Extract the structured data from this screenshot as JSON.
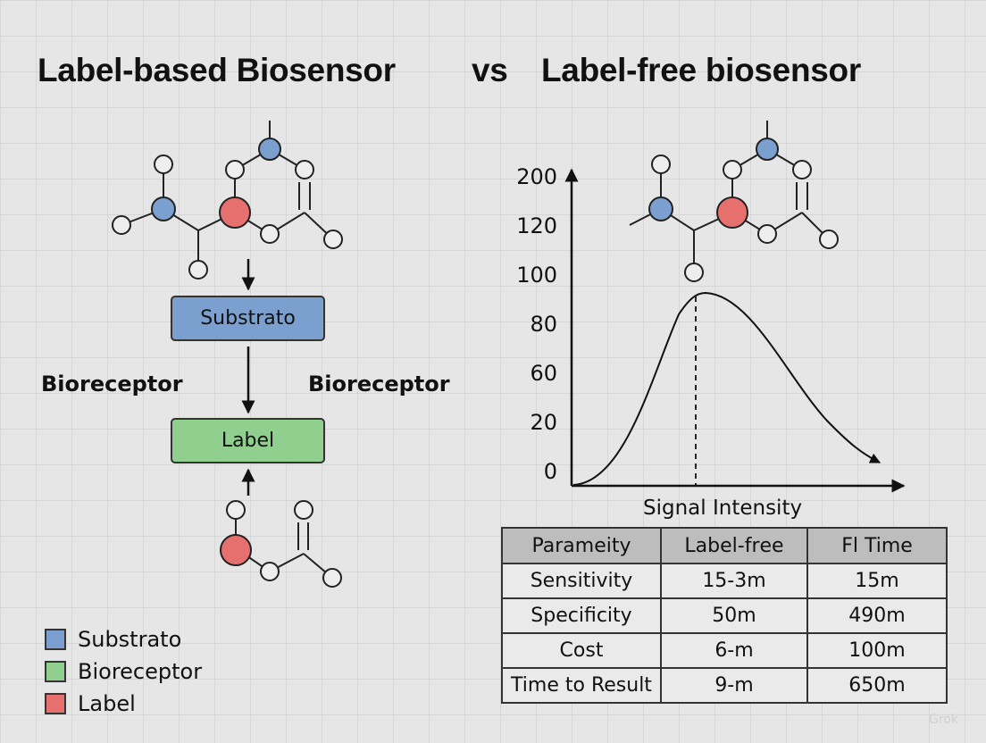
{
  "titles": {
    "left": "Label-based Biosensor",
    "vs": "vs",
    "right": "Label-free biosensor"
  },
  "boxes": {
    "substrato": "Substrato",
    "label": "Label"
  },
  "side_labels": {
    "left": "Bioreceptor",
    "right": "Bioreceptor"
  },
  "colors": {
    "substrato": "#7ba0cf",
    "bioreceptor": "#91cf8e",
    "label": "#e6706d"
  },
  "chart_data": {
    "type": "line",
    "title": "",
    "xlabel": "Signal Intensity",
    "ylabel": "",
    "y_tick_labels": [
      "200",
      "120",
      "100",
      "80",
      "60",
      "20",
      "0"
    ],
    "series": [
      {
        "shape": "single-peak curve",
        "peak_marker": "dashed vertical line at peak"
      }
    ]
  },
  "table": {
    "headers": [
      "Parameity",
      "Label-frеe",
      "Fl Time"
    ],
    "rows": [
      [
        "Sensitivity",
        "15-3m",
        "15m"
      ],
      [
        "Specificity",
        "50m",
        "490m"
      ],
      [
        "Cost",
        "6-m",
        "100m"
      ],
      [
        "Time to Result",
        "9-m",
        "650m"
      ]
    ]
  },
  "legend": [
    {
      "label": "Substrato",
      "color": "#7ba0cf"
    },
    {
      "label": "Bioreceptor",
      "color": "#91cf8e"
    },
    {
      "label": "Label",
      "color": "#e6706d"
    }
  ],
  "watermark": "Grok"
}
